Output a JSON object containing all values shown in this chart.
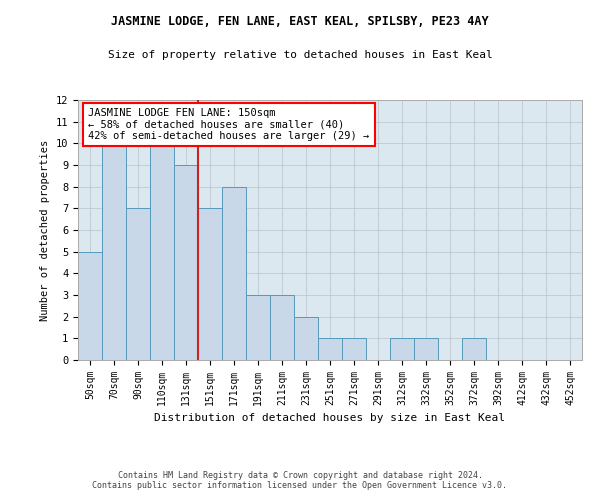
{
  "title": "JASMINE LODGE, FEN LANE, EAST KEAL, SPILSBY, PE23 4AY",
  "subtitle": "Size of property relative to detached houses in East Keal",
  "xlabel": "Distribution of detached houses by size in East Keal",
  "ylabel": "Number of detached properties",
  "footer_line1": "Contains HM Land Registry data © Crown copyright and database right 2024.",
  "footer_line2": "Contains public sector information licensed under the Open Government Licence v3.0.",
  "bin_labels": [
    "50sqm",
    "70sqm",
    "90sqm",
    "110sqm",
    "131sqm",
    "151sqm",
    "171sqm",
    "191sqm",
    "211sqm",
    "231sqm",
    "251sqm",
    "271sqm",
    "291sqm",
    "312sqm",
    "332sqm",
    "352sqm",
    "372sqm",
    "392sqm",
    "412sqm",
    "432sqm",
    "452sqm"
  ],
  "values": [
    5,
    10,
    7,
    10,
    9,
    7,
    8,
    3,
    3,
    2,
    1,
    1,
    0,
    1,
    1,
    0,
    1,
    0,
    0,
    0,
    0
  ],
  "bar_color": "#c8d8e8",
  "bar_edge_color": "#5599bb",
  "highlight_bin_index": 5,
  "annotation_text": "JASMINE LODGE FEN LANE: 150sqm\n← 58% of detached houses are smaller (40)\n42% of semi-detached houses are larger (29) →",
  "annotation_box_color": "white",
  "annotation_box_edge": "red",
  "ylim": [
    0,
    12
  ],
  "yticks": [
    0,
    1,
    2,
    3,
    4,
    5,
    6,
    7,
    8,
    9,
    10,
    11,
    12
  ],
  "grid_color": "#c0c8d0",
  "bg_color": "#dce8f0",
  "property_line_color": "#cc2222"
}
